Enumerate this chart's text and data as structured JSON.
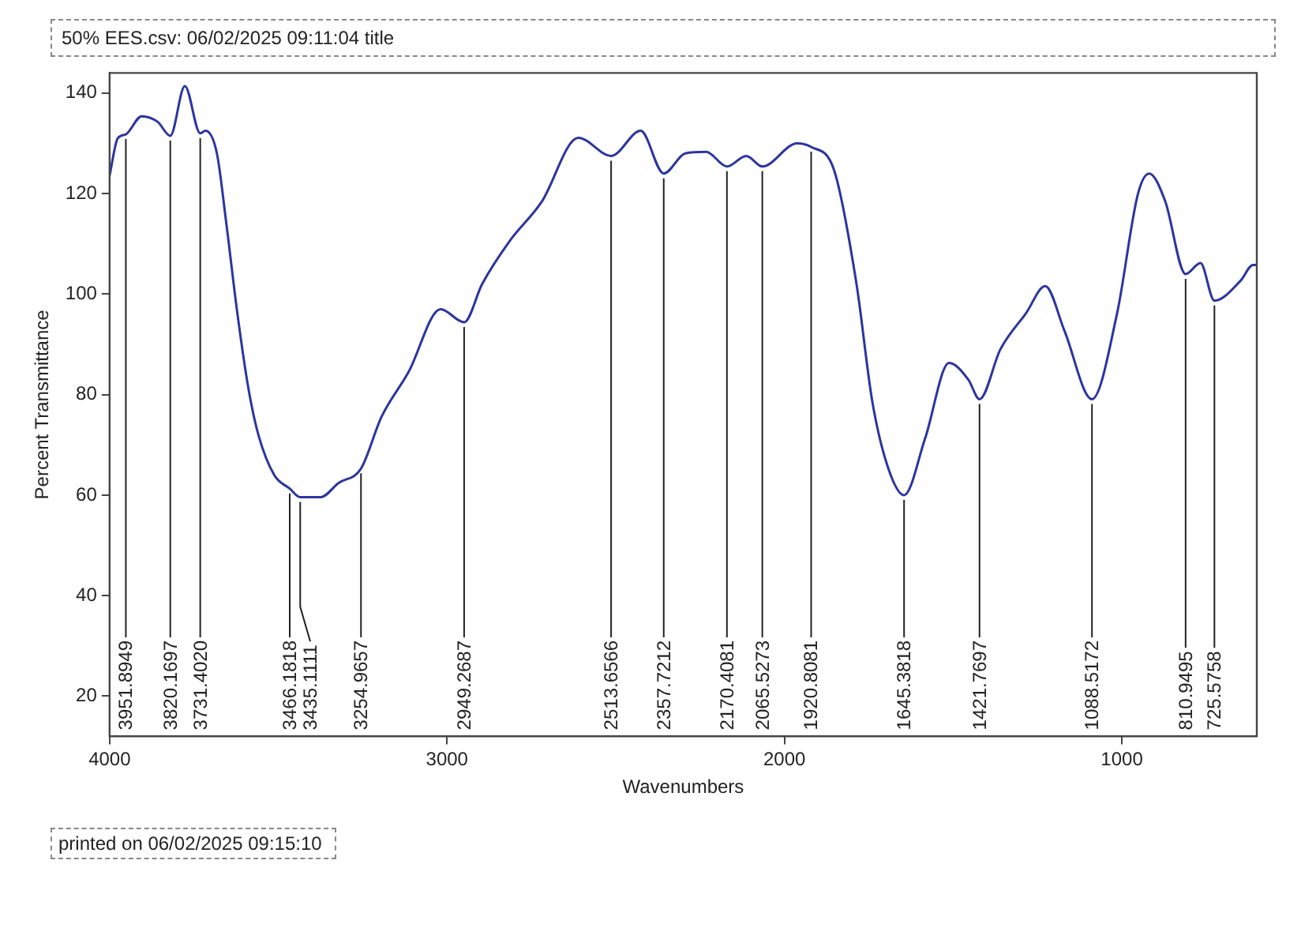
{
  "chart_data": {
    "type": "line",
    "title": "50% EES.csv: 06/02/2025 09:11:04 title",
    "xlabel": "Wavenumbers",
    "ylabel": "Percent Transmittance",
    "xlim": [
      4000,
      600
    ],
    "ylim": [
      12,
      144
    ],
    "xticks": [
      4000,
      3000,
      2000,
      1000
    ],
    "yticks": [
      20,
      40,
      60,
      80,
      100,
      120,
      140
    ],
    "grid": false,
    "legend": false,
    "marker": "none",
    "line_style": "solid",
    "series": [
      {
        "color": "#2b35a0",
        "x": [
          4000,
          3976,
          3951.8949,
          3905,
          3858,
          3820.1697,
          3777,
          3731.402,
          3716,
          3682,
          3654,
          3621,
          3588,
          3559,
          3512,
          3466.1818,
          3435.1111,
          3374,
          3322,
          3254.9657,
          3194,
          3114,
          3019,
          2949.2687,
          2896,
          2815,
          2720,
          2611,
          2513.6566,
          2426,
          2357.7212,
          2294,
          2232,
          2170.4081,
          2113,
          2065.5273,
          1962,
          1920.8081,
          1853,
          1787,
          1739,
          1692,
          1645.3818,
          1583,
          1512,
          1455,
          1421.7697,
          1360,
          1284,
          1227,
          1170,
          1088.5172,
          1014,
          952,
          919,
          872,
          810.9495,
          767,
          725.5758,
          649,
          611,
          600
        ],
        "values": [
          123.6,
          131,
          131.8,
          135.4,
          134.3,
          131.5,
          141.4,
          132,
          132.5,
          128,
          114,
          96,
          81,
          72,
          64,
          61.3,
          59.6,
          59.6,
          62.4,
          65.3,
          75.6,
          84.5,
          97,
          94.4,
          102,
          110.5,
          118.3,
          131.1,
          127.5,
          132.5,
          124,
          128,
          128.3,
          125.4,
          127.5,
          125.4,
          130,
          129.3,
          124.7,
          102.3,
          78.4,
          65.3,
          60,
          71.3,
          86.3,
          83,
          79.1,
          89,
          96.2,
          101.6,
          92.7,
          79.1,
          96.2,
          120,
          124,
          118.6,
          104,
          106.2,
          98.7,
          102.6,
          105.8,
          105.8
        ]
      }
    ],
    "annotations": [
      {
        "text": "3951.8949",
        "x": 3951.8949,
        "y": 131.8
      },
      {
        "text": "3820.1697",
        "x": 3820.1697,
        "y": 131.5
      },
      {
        "text": "3731.4020",
        "x": 3731.402,
        "y": 132
      },
      {
        "text": "3466.1818",
        "x": 3466.1818,
        "y": 61.3
      },
      {
        "text": "3435.1111",
        "x": 3435.1111,
        "y": 59.6
      },
      {
        "text": "3254.9657",
        "x": 3254.9657,
        "y": 65.3
      },
      {
        "text": "2949.2687",
        "x": 2949.2687,
        "y": 94.4
      },
      {
        "text": "2513.6566",
        "x": 2513.6566,
        "y": 127.5
      },
      {
        "text": "2357.7212",
        "x": 2357.7212,
        "y": 124
      },
      {
        "text": "2170.4081",
        "x": 2170.4081,
        "y": 125.4
      },
      {
        "text": "2065.5273",
        "x": 2065.5273,
        "y": 125.4
      },
      {
        "text": "1920.8081",
        "x": 1920.8081,
        "y": 129.3
      },
      {
        "text": "1645.3818",
        "x": 1645.3818,
        "y": 60
      },
      {
        "text": "1421.7697",
        "x": 1421.7697,
        "y": 79.1
      },
      {
        "text": "1088.5172",
        "x": 1088.5172,
        "y": 79.1
      },
      {
        "text": "810.9495",
        "x": 810.9495,
        "y": 104
      },
      {
        "text": "725.5758",
        "x": 725.5758,
        "y": 98.7
      },
      "printed on 06/02/2025 09:15:10"
    ]
  }
}
